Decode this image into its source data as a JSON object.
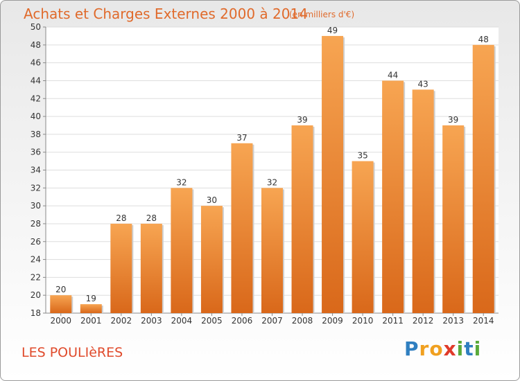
{
  "chart_data": {
    "type": "bar",
    "title": "Achats et Charges Externes 2000 à 2014",
    "subtitle": "(en milliers d'€)",
    "xlabel": "",
    "ylabel": "",
    "categories": [
      "2000",
      "2001",
      "2002",
      "2003",
      "2004",
      "2005",
      "2006",
      "2007",
      "2008",
      "2009",
      "2010",
      "2011",
      "2012",
      "2013",
      "2014"
    ],
    "values": [
      20,
      19,
      28,
      28,
      32,
      30,
      37,
      32,
      39,
      49,
      35,
      44,
      43,
      39,
      48
    ],
    "data_labels": [
      "20",
      "19",
      "28",
      "28",
      "32",
      "30",
      "37",
      "32",
      "39",
      "49",
      "35",
      "44",
      "43",
      "39",
      "48"
    ],
    "ylim": [
      18,
      50
    ],
    "yticks": [
      18,
      20,
      22,
      24,
      26,
      28,
      30,
      32,
      34,
      36,
      38,
      40,
      42,
      44,
      46,
      48,
      50
    ],
    "grid": true,
    "bar_color_top": "#f7a552",
    "bar_color_bottom": "#d9681a"
  },
  "location": "LES POULIèRES",
  "brand": {
    "letters": [
      "P",
      "r",
      "o",
      "x",
      "i",
      "t",
      "i"
    ],
    "colors": [
      "#2f7fc0",
      "#f0a020",
      "#f0a020",
      "#e03a2a",
      "#5aaa3a",
      "#2f7fc0",
      "#5aaa3a"
    ]
  },
  "colors": {
    "title": "#e06a2b",
    "location": "#e04a2b"
  }
}
